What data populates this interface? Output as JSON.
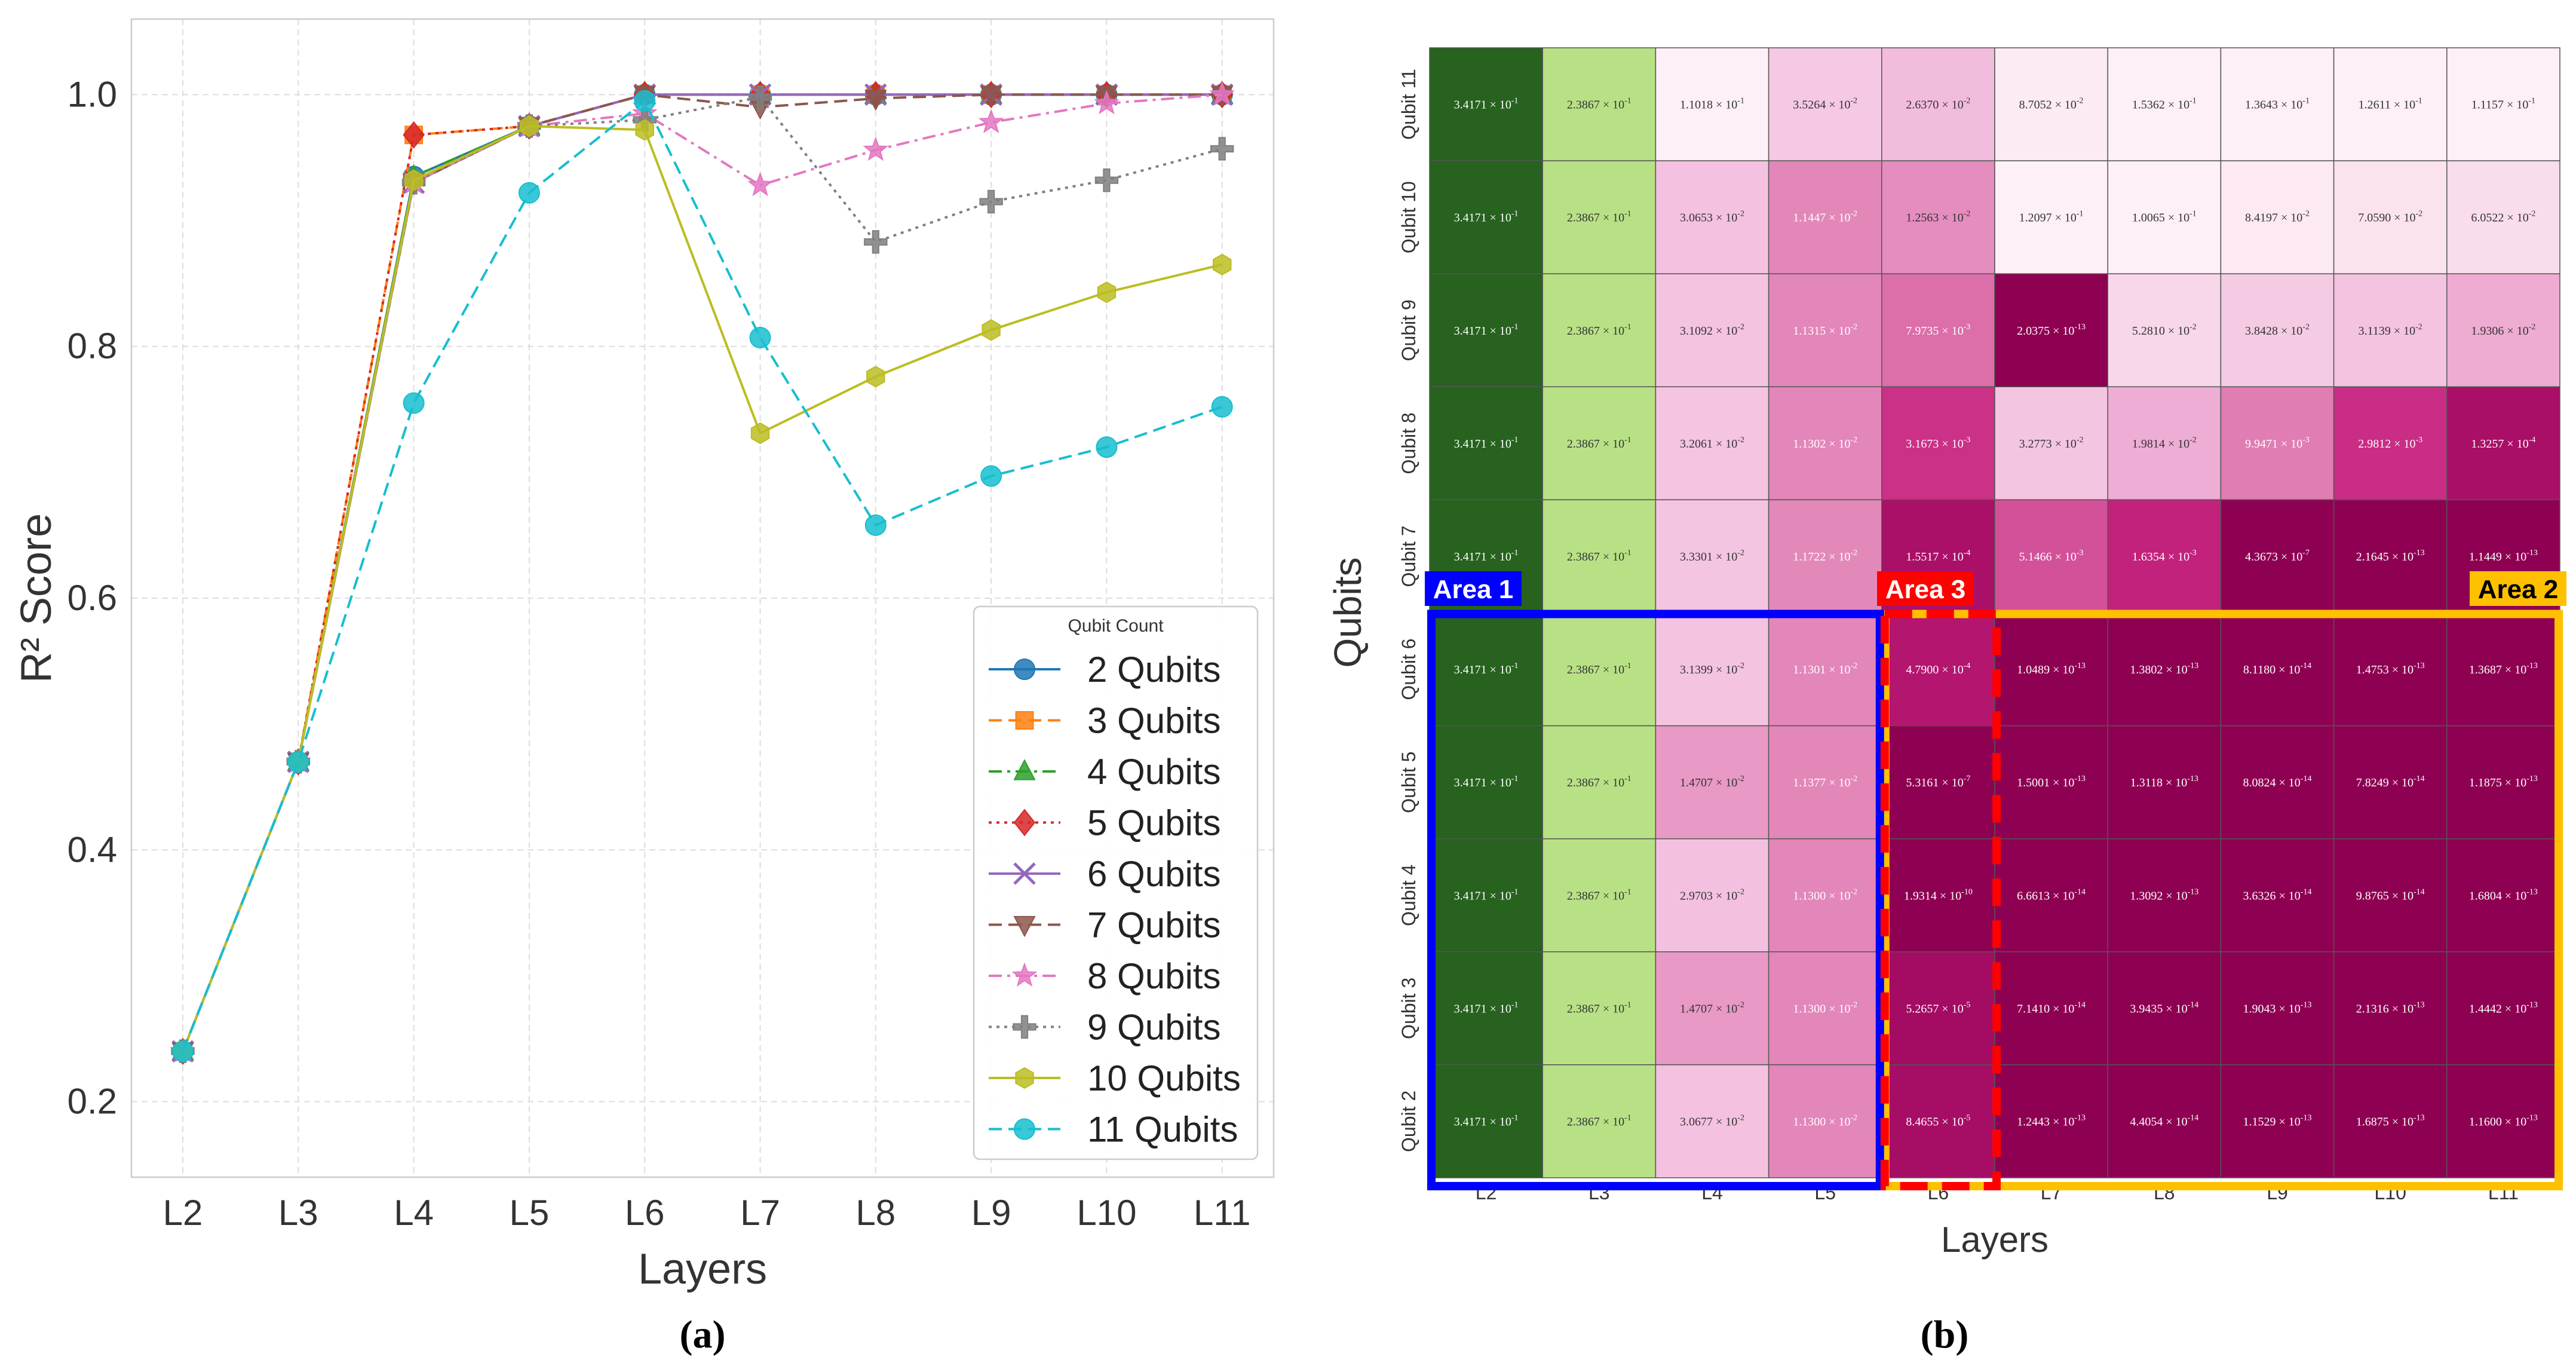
{
  "chart_data": [
    {
      "panel_label": "(a)",
      "type": "line",
      "title": "",
      "xlabel": "Layers",
      "ylabel": "R² Score",
      "categories": [
        "L2",
        "L3",
        "L4",
        "L5",
        "L6",
        "L7",
        "L8",
        "L9",
        "L10",
        "L11"
      ],
      "ylim": [
        0.14,
        1.06
      ],
      "yticks": [
        "0.2",
        "0.4",
        "0.6",
        "0.8",
        "1.0"
      ],
      "grid": true,
      "legend_title": "Qubit Count",
      "legend_position": "lower-right",
      "series": [
        {
          "name": "2 Qubits",
          "color": "#1f77b4",
          "marker": "circle",
          "dash": "solid",
          "values": [
            0.24,
            0.47,
            0.935,
            0.975,
            1.0,
            1.0,
            1.0,
            1.0,
            1.0,
            1.0
          ]
        },
        {
          "name": "3 Qubits",
          "color": "#ff7f0e",
          "marker": "square",
          "dash": "dashed",
          "values": [
            0.24,
            0.47,
            0.968,
            0.975,
            1.0,
            1.0,
            1.0,
            1.0,
            1.0,
            1.0
          ]
        },
        {
          "name": "4 Qubits",
          "color": "#2ca02c",
          "marker": "triangle-up",
          "dash": "dashdot",
          "values": [
            0.24,
            0.47,
            0.935,
            0.975,
            1.0,
            1.0,
            1.0,
            1.0,
            1.0,
            1.0
          ]
        },
        {
          "name": "5 Qubits",
          "color": "#d62728",
          "marker": "diamond",
          "dash": "dotted",
          "values": [
            0.24,
            0.47,
            0.968,
            0.975,
            1.0,
            1.0,
            1.0,
            1.0,
            1.0,
            1.0
          ]
        },
        {
          "name": "6 Qubits",
          "color": "#9467bd",
          "marker": "x",
          "dash": "solid",
          "values": [
            0.24,
            0.47,
            0.93,
            0.975,
            1.0,
            1.0,
            1.0,
            1.0,
            1.0,
            1.0
          ]
        },
        {
          "name": "7 Qubits",
          "color": "#8c564b",
          "marker": "triangle-down",
          "dash": "dashed",
          "values": [
            0.24,
            0.47,
            0.93,
            0.975,
            1.0,
            0.99,
            0.997,
            1.0,
            1.0,
            1.0
          ]
        },
        {
          "name": "8 Qubits",
          "color": "#e377c2",
          "marker": "star",
          "dash": "dashdot",
          "values": [
            0.24,
            0.47,
            0.93,
            0.975,
            0.985,
            0.928,
            0.956,
            0.978,
            0.993,
            1.0
          ]
        },
        {
          "name": "9 Qubits",
          "color": "#7f7f7f",
          "marker": "plus",
          "dash": "dotted",
          "values": [
            0.24,
            0.47,
            0.93,
            0.975,
            0.98,
            0.998,
            0.883,
            0.915,
            0.932,
            0.957
          ]
        },
        {
          "name": "10 Qubits",
          "color": "#bcbd22",
          "marker": "hexagon",
          "dash": "solid",
          "values": [
            0.24,
            0.47,
            0.932,
            0.975,
            0.972,
            0.731,
            0.776,
            0.813,
            0.843,
            0.865
          ]
        },
        {
          "name": "11 Qubits",
          "color": "#17becf",
          "marker": "circle",
          "dash": "dashed",
          "values": [
            0.24,
            0.47,
            0.755,
            0.922,
            0.995,
            0.807,
            0.658,
            0.697,
            0.72,
            0.752
          ]
        }
      ]
    },
    {
      "panel_label": "(b)",
      "type": "heatmap",
      "xlabel": "Layers",
      "ylabel": "Qubits",
      "x_categories": [
        "L2",
        "L3",
        "L4",
        "L5",
        "L6",
        "L7",
        "L8",
        "L9",
        "L10",
        "L11"
      ],
      "y_categories": [
        "Qubit 11",
        "Qubit 10",
        "Qubit 9",
        "Qubit 8",
        "Qubit 7",
        "Qubit 6",
        "Qubit 5",
        "Qubit 4",
        "Qubit 3",
        "Qubit 2"
      ],
      "column_colors": {
        "L2": "#27621f",
        "L3": "#b8e186"
      },
      "column_text_colors": {
        "L2": "#ffffff",
        "L3": "#333333"
      },
      "cells": [
        [
          [
            "3.4171",
            "-1"
          ],
          [
            "2.3867",
            "-1"
          ],
          [
            "1.1018",
            "-1"
          ],
          [
            "3.5264",
            "-2"
          ],
          [
            "2.6370",
            "-2"
          ],
          [
            "8.7052",
            "-2"
          ],
          [
            "1.5362",
            "-1"
          ],
          [
            "1.3643",
            "-1"
          ],
          [
            "1.2611",
            "-1"
          ],
          [
            "1.1157",
            "-1"
          ]
        ],
        [
          [
            "3.4171",
            "-1"
          ],
          [
            "2.3867",
            "-1"
          ],
          [
            "3.0653",
            "-2"
          ],
          [
            "1.1447",
            "-2"
          ],
          [
            "1.2563",
            "-2"
          ],
          [
            "1.2097",
            "-1"
          ],
          [
            "1.0065",
            "-1"
          ],
          [
            "8.4197",
            "-2"
          ],
          [
            "7.0590",
            "-2"
          ],
          [
            "6.0522",
            "-2"
          ]
        ],
        [
          [
            "3.4171",
            "-1"
          ],
          [
            "2.3867",
            "-1"
          ],
          [
            "3.1092",
            "-2"
          ],
          [
            "1.1315",
            "-2"
          ],
          [
            "7.9735",
            "-3"
          ],
          [
            "2.0375",
            "-13"
          ],
          [
            "5.2810",
            "-2"
          ],
          [
            "3.8428",
            "-2"
          ],
          [
            "3.1139",
            "-2"
          ],
          [
            "1.9306",
            "-2"
          ]
        ],
        [
          [
            "3.4171",
            "-1"
          ],
          [
            "2.3867",
            "-1"
          ],
          [
            "3.2061",
            "-2"
          ],
          [
            "1.1302",
            "-2"
          ],
          [
            "3.1673",
            "-3"
          ],
          [
            "3.2773",
            "-2"
          ],
          [
            "1.9814",
            "-2"
          ],
          [
            "9.9471",
            "-3"
          ],
          [
            "2.9812",
            "-3"
          ],
          [
            "1.3257",
            "-4"
          ]
        ],
        [
          [
            "3.4171",
            "-1"
          ],
          [
            "2.3867",
            "-1"
          ],
          [
            "3.3301",
            "-2"
          ],
          [
            "1.1722",
            "-2"
          ],
          [
            "1.5517",
            "-4"
          ],
          [
            "5.1466",
            "-3"
          ],
          [
            "1.6354",
            "-3"
          ],
          [
            "4.3673",
            "-7"
          ],
          [
            "2.1645",
            "-13"
          ],
          [
            "1.1449",
            "-13"
          ]
        ],
        [
          [
            "3.4171",
            "-1"
          ],
          [
            "2.3867",
            "-1"
          ],
          [
            "3.1399",
            "-2"
          ],
          [
            "1.1301",
            "-2"
          ],
          [
            "4.7900",
            "-4"
          ],
          [
            "1.0489",
            "-13"
          ],
          [
            "1.3802",
            "-13"
          ],
          [
            "8.1180",
            "-14"
          ],
          [
            "1.4753",
            "-13"
          ],
          [
            "1.3687",
            "-13"
          ]
        ],
        [
          [
            "3.4171",
            "-1"
          ],
          [
            "2.3867",
            "-1"
          ],
          [
            "1.4707",
            "-2"
          ],
          [
            "1.1377",
            "-2"
          ],
          [
            "5.3161",
            "-7"
          ],
          [
            "1.5001",
            "-13"
          ],
          [
            "1.3118",
            "-13"
          ],
          [
            "8.0824",
            "-14"
          ],
          [
            "7.8249",
            "-14"
          ],
          [
            "1.1875",
            "-13"
          ]
        ],
        [
          [
            "3.4171",
            "-1"
          ],
          [
            "2.3867",
            "-1"
          ],
          [
            "2.9703",
            "-2"
          ],
          [
            "1.1300",
            "-2"
          ],
          [
            "1.9314",
            "-10"
          ],
          [
            "6.6613",
            "-14"
          ],
          [
            "1.3092",
            "-13"
          ],
          [
            "3.6326",
            "-14"
          ],
          [
            "9.8765",
            "-14"
          ],
          [
            "1.6804",
            "-13"
          ]
        ],
        [
          [
            "3.4171",
            "-1"
          ],
          [
            "2.3867",
            "-1"
          ],
          [
            "1.4707",
            "-2"
          ],
          [
            "1.1300",
            "-2"
          ],
          [
            "5.2657",
            "-5"
          ],
          [
            "7.1410",
            "-14"
          ],
          [
            "3.9435",
            "-14"
          ],
          [
            "1.9043",
            "-13"
          ],
          [
            "2.1316",
            "-13"
          ],
          [
            "1.4442",
            "-13"
          ]
        ],
        [
          [
            "3.4171",
            "-1"
          ],
          [
            "2.3867",
            "-1"
          ],
          [
            "3.0677",
            "-2"
          ],
          [
            "1.1300",
            "-2"
          ],
          [
            "8.4655",
            "-5"
          ],
          [
            "1.2443",
            "-13"
          ],
          [
            "4.4054",
            "-14"
          ],
          [
            "1.1529",
            "-13"
          ],
          [
            "1.6875",
            "-13"
          ],
          [
            "1.1600",
            "-13"
          ]
        ]
      ],
      "areas": [
        {
          "label": "Area 1",
          "color": "#0000ff",
          "columns": [
            "L2",
            "L5"
          ],
          "rows": [
            "Qubit 6",
            "Qubit 2"
          ],
          "style": "solid"
        },
        {
          "label": "Area 2",
          "color": "#ffc000",
          "columns": [
            "L6",
            "L11"
          ],
          "rows": [
            "Qubit 6",
            "Qubit 2"
          ],
          "style": "solid"
        },
        {
          "label": "Area 3",
          "color": "#ff0000",
          "columns": [
            "L6",
            "L6"
          ],
          "rows": [
            "Qubit 6",
            "Qubit 2"
          ],
          "style": "dashed"
        }
      ]
    }
  ]
}
